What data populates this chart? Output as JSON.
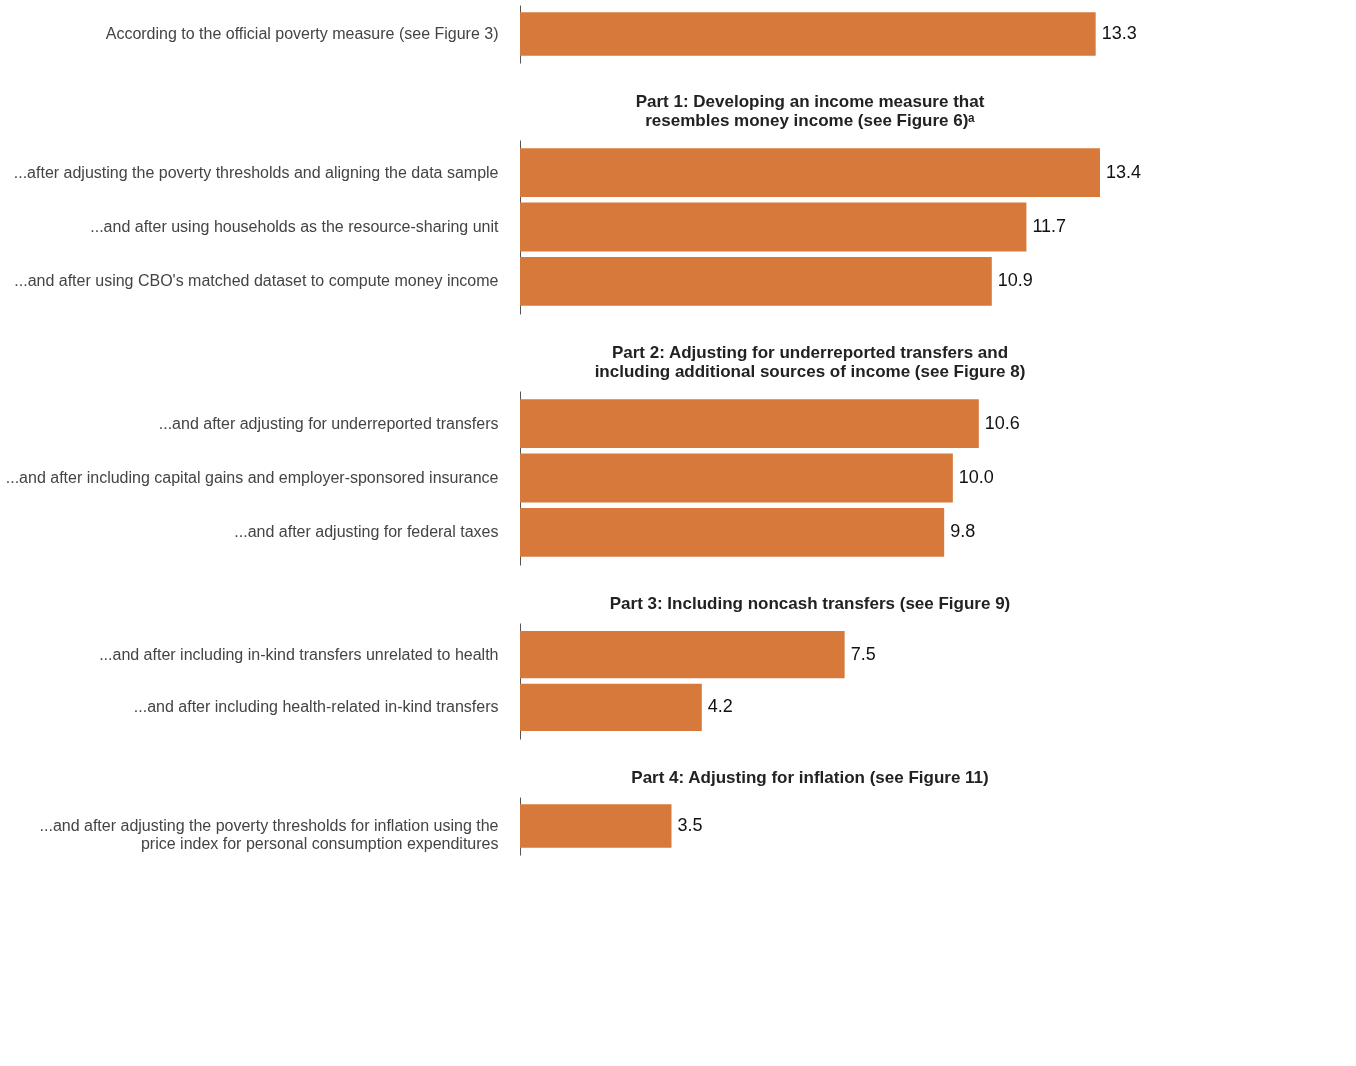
{
  "chart_data": [
    {
      "type": "bar",
      "orientation": "horizontal",
      "color": "#d6793a",
      "categories": [
        "According to the official poverty measure (see Figure 3)"
      ],
      "values": [
        13.3
      ],
      "value_labels": [
        "13.3"
      ]
    },
    {
      "type": "bar",
      "orientation": "horizontal",
      "color": "#d6793a",
      "title": "Part 1: Developing an income measure that\nresembles money income (see Figure 6)ᵃ",
      "categories": [
        "...after adjusting the poverty thresholds and aligning the data sample",
        "...and after using households as the resource-sharing unit",
        "...and after using CBO's matched dataset to compute money income"
      ],
      "values": [
        13.4,
        11.7,
        10.9
      ],
      "value_labels": [
        "13.4",
        "11.7",
        "10.9"
      ]
    },
    {
      "type": "bar",
      "orientation": "horizontal",
      "color": "#d6793a",
      "title": "Part 2: Adjusting for underreported transfers and\nincluding additional sources of income (see Figure 8)",
      "categories": [
        "...and after adjusting for underreported transfers",
        "...and after including capital gains and employer-sponsored insurance",
        "...and after adjusting for federal taxes"
      ],
      "values": [
        10.6,
        10.0,
        9.8
      ],
      "value_labels": [
        "10.6",
        "10.0",
        "9.8"
      ]
    },
    {
      "type": "bar",
      "orientation": "horizontal",
      "color": "#d6793a",
      "title": "Part 3: Including noncash transfers (see Figure 9)",
      "categories": [
        "...and after including in-kind transfers unrelated to health",
        "...and after including health-related in-kind transfers"
      ],
      "values": [
        7.5,
        4.2
      ],
      "value_labels": [
        "7.5",
        "4.2"
      ]
    },
    {
      "type": "bar",
      "orientation": "horizontal",
      "color": "#d6793a",
      "title": "Part 4: Adjusting for inflation (see Figure 11)",
      "categories": [
        "...and after adjusting the poverty thresholds for inflation using the\nprice index for personal consumption expenditures"
      ],
      "values": [
        3.5
      ],
      "value_labels": [
        "3.5"
      ]
    }
  ]
}
